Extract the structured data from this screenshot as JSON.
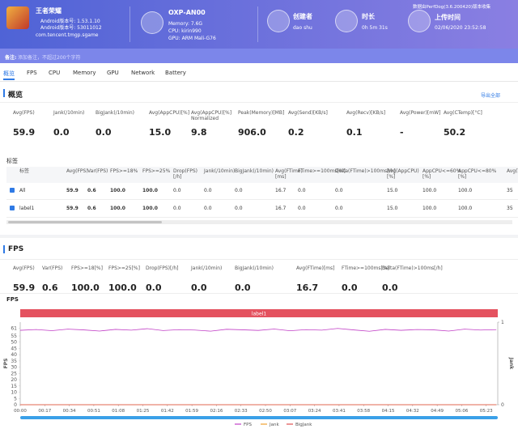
{
  "header": {
    "app_name": "王者荣耀",
    "app_version": "Android版本号: 1.53.1.10",
    "app_build": "Android版本号: 53011012",
    "package": "com.tencent.tmgp.sgame",
    "device": "OXP-AN00",
    "memory": "Memory: 7.6G",
    "cpu": "CPU: kirin990",
    "gpu": "GPU: ARM Mali-G76",
    "creator_label": "创建者",
    "creator": "dao shu",
    "duration_label": "时长",
    "duration": "0h 5m 31s",
    "upload_label": "上传时间",
    "upload_time": "02/06/2020 23:52:58",
    "collector": "数据由PerfDog(3.6.200420)版本收集"
  },
  "note": {
    "label": "备注:",
    "placeholder": "添加备注，不超过200个字符"
  },
  "tabs": [
    "概览",
    "FPS",
    "CPU",
    "Memory",
    "GPU",
    "Network",
    "Battery"
  ],
  "overview": {
    "title": "概览",
    "export": "导出全部",
    "metrics": [
      {
        "label": "Avg(FPS)",
        "value": "59.9"
      },
      {
        "label": "Jank(/10min)",
        "value": "0.0"
      },
      {
        "label": "BigJank(/10min)",
        "value": "0.0"
      },
      {
        "label": "Avg(AppCPU)[%]",
        "value": "15.0"
      },
      {
        "label": "Avg(AppCPU)[%] Normalized",
        "value": "9.8"
      },
      {
        "label": "Peak(Memory)[MB]",
        "value": "906.0"
      },
      {
        "label": "Avg(Send)[KB/s]",
        "value": "0.2"
      },
      {
        "label": "Avg(Recv)[KB/s]",
        "value": "0.1"
      },
      {
        "label": "Avg(Power)[mW]",
        "value": "-"
      },
      {
        "label": "Avg(CTemp)[°C]",
        "value": "50.2"
      }
    ]
  },
  "labels_table": {
    "title": "标签",
    "columns": [
      "标签",
      "Avg(FPS)",
      "Var(FPS)",
      "FPS>=18%",
      "FPS>=25%",
      "Drop(FPS)[/h]",
      "Jank(/10min)",
      "BigJank(/10min)",
      "Avg(FTime)[ms]",
      "FTime>=100ms[%]",
      "Delta(FTime)>100ms[/h]",
      "Avg(AppCPU)[%]",
      "AppCPU<=60%[%]",
      "AppCPU<=80%[%]",
      "Avg(To"
    ],
    "rows": [
      [
        "All",
        "59.9",
        "0.6",
        "100.0",
        "100.0",
        "0.0",
        "0.0",
        "0.0",
        "16.7",
        "0.0",
        "0.0",
        "15.0",
        "100.0",
        "100.0",
        "35"
      ],
      [
        "label1",
        "59.9",
        "0.6",
        "100.0",
        "100.0",
        "0.0",
        "0.0",
        "0.0",
        "16.7",
        "0.0",
        "0.0",
        "15.0",
        "100.0",
        "100.0",
        "35"
      ]
    ]
  },
  "fps_section": {
    "title": "FPS",
    "metrics": [
      {
        "label": "Avg(FPS)",
        "value": "59.9"
      },
      {
        "label": "Var(FPS)",
        "value": "0.6"
      },
      {
        "label": "FPS>=18[%]",
        "value": "100.0"
      },
      {
        "label": "FPS>=25[%]",
        "value": "100.0"
      },
      {
        "label": "Drop(FPS)[/h]",
        "value": "0.0"
      },
      {
        "label": "Jank(/10min)",
        "value": "0.0"
      },
      {
        "label": "BigJank(/10min)",
        "value": "0.0"
      },
      {
        "label": "Avg(FTime)[ms]",
        "value": "16.7"
      },
      {
        "label": "FTime>=100ms[%]",
        "value": "0.0"
      },
      {
        "label": "Delta(FTime)>100ms[/h]",
        "value": "0.0"
      }
    ]
  },
  "chart_data": {
    "type": "line",
    "title": "FPS",
    "band_label": "label1",
    "y_label": "FPS",
    "y2_label": "Jank",
    "x": [
      0,
      11,
      22,
      33,
      44,
      55,
      66,
      77,
      88,
      99,
      110,
      121,
      132,
      143,
      154,
      165,
      176,
      187,
      198,
      209,
      220,
      231,
      242,
      253,
      264,
      275,
      286,
      297,
      308,
      319,
      330
    ],
    "series": [
      {
        "name": "FPS",
        "color": "#c13fc6",
        "values": [
          59.5,
          60.1,
          59.2,
          60.4,
          59.8,
          58.9,
          60.2,
          59.6,
          60.8,
          59.3,
          60.0,
          59.7,
          58.8,
          60.3,
          59.9,
          59.4,
          60.5,
          59.1,
          60.0,
          59.6,
          61.0,
          59.8,
          58.7,
          60.2,
          59.5,
          60.1,
          59.9,
          58.9,
          60.4,
          59.7,
          60.0
        ]
      },
      {
        "name": "Jank",
        "color": "#f0a030",
        "axis": "y2",
        "values": [
          0,
          0,
          0,
          0,
          0,
          0,
          0,
          0,
          0,
          0,
          0,
          0,
          0,
          0,
          0,
          0,
          0,
          0,
          0,
          0,
          0,
          0,
          0,
          0,
          0,
          0,
          0,
          0,
          0,
          0,
          0
        ]
      },
      {
        "name": "BigJank",
        "color": "#e0504f",
        "axis": "y2",
        "values": [
          0,
          0,
          0,
          0,
          0,
          0,
          0,
          0,
          0,
          0,
          0,
          0,
          0,
          0,
          0,
          0,
          0,
          0,
          0,
          0,
          0,
          0,
          0,
          0,
          0,
          0,
          0,
          0,
          0,
          0,
          0
        ]
      }
    ],
    "xlim": [
      0,
      331
    ],
    "xticks": [
      {
        "value": 0,
        "label": "00:00"
      },
      {
        "value": 17,
        "label": "00:17"
      },
      {
        "value": 34,
        "label": "00:34"
      },
      {
        "value": 51,
        "label": "00:51"
      },
      {
        "value": 68,
        "label": "01:08"
      },
      {
        "value": 85,
        "label": "01:25"
      },
      {
        "value": 102,
        "label": "01:42"
      },
      {
        "value": 119,
        "label": "01:59"
      },
      {
        "value": 136,
        "label": "02:16"
      },
      {
        "value": 153,
        "label": "02:33"
      },
      {
        "value": 170,
        "label": "02:50"
      },
      {
        "value": 187,
        "label": "03:07"
      },
      {
        "value": 204,
        "label": "03:24"
      },
      {
        "value": 221,
        "label": "03:41"
      },
      {
        "value": 238,
        "label": "03:58"
      },
      {
        "value": 255,
        "label": "04:15"
      },
      {
        "value": 272,
        "label": "04:32"
      },
      {
        "value": 289,
        "label": "04:49"
      },
      {
        "value": 306,
        "label": "05:06"
      },
      {
        "value": 323,
        "label": "05:23"
      }
    ],
    "ylim": [
      0,
      66
    ],
    "yticks": [
      0,
      5,
      10,
      15,
      20,
      25,
      30,
      35,
      40,
      45,
      50,
      55,
      61
    ],
    "y2lim": [
      0,
      1
    ],
    "y2ticks": [
      0,
      1
    ],
    "grid": false
  }
}
